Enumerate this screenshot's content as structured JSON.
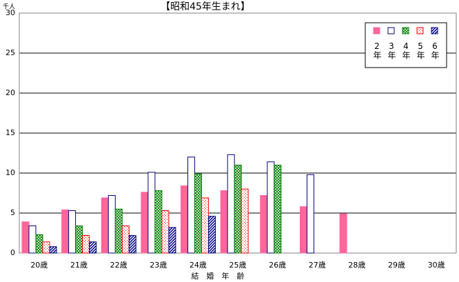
{
  "chart_data": {
    "type": "bar",
    "title": "【昭和45年生まれ】",
    "y_unit": "千人",
    "x_label": "結　婚　年　齢",
    "categories": [
      "20歳",
      "21歳",
      "22歳",
      "23歳",
      "24歳",
      "25歳",
      "26歳",
      "27歳",
      "28歳",
      "29歳",
      "30歳"
    ],
    "series": [
      {
        "name": "2年",
        "color": "#ff6699",
        "fill_style": "solid",
        "values": [
          3.9,
          5.4,
          6.9,
          7.6,
          8.4,
          7.8,
          7.2,
          5.8,
          4.9,
          null,
          null
        ]
      },
      {
        "name": "3年",
        "color": "#000080",
        "fill_style": "empty",
        "values": [
          3.4,
          5.3,
          7.2,
          10.1,
          12.0,
          12.3,
          11.4,
          9.8,
          null,
          null,
          null
        ]
      },
      {
        "name": "4年",
        "color": "#008000",
        "fill_style": "crosshatch",
        "values": [
          2.3,
          3.4,
          5.5,
          7.8,
          9.9,
          11.0,
          11.0,
          null,
          null,
          null,
          null
        ]
      },
      {
        "name": "5年",
        "color": "#ff0000",
        "fill_style": "dots",
        "values": [
          1.4,
          2.2,
          3.4,
          5.3,
          6.9,
          8.0,
          null,
          null,
          null,
          null,
          null
        ]
      },
      {
        "name": "6年",
        "color": "#000080",
        "fill_style": "diagonal",
        "values": [
          0.8,
          1.4,
          2.2,
          3.2,
          4.6,
          null,
          null,
          null,
          null,
          null,
          null
        ]
      }
    ],
    "ylim": [
      0,
      30
    ],
    "yticks": [
      0,
      5,
      10,
      15,
      20,
      25,
      30
    ],
    "grid": true,
    "legend": "top-right"
  }
}
